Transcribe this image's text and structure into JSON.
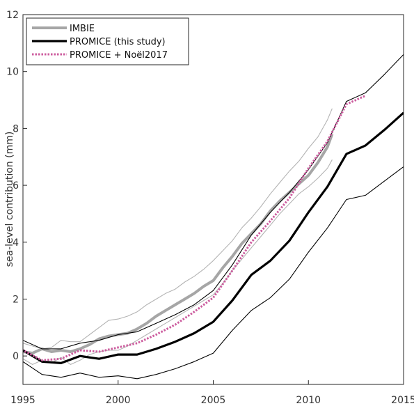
{
  "chart_data": {
    "type": "line",
    "ylabel": "sea-level contribution (mm)",
    "xlabel": "",
    "xlim": [
      1995,
      2015
    ],
    "ylim": [
      -1,
      12
    ],
    "x_ticks": [
      1995,
      2000,
      2005,
      2010,
      2015
    ],
    "y_ticks": [
      0,
      2,
      4,
      6,
      8,
      10,
      12
    ],
    "grid": false,
    "legend_position": "top-left",
    "legend": [
      {
        "label": "IMBIE",
        "series": "imbie"
      },
      {
        "label": "PROMICE (this study)",
        "series": "promice"
      },
      {
        "label": "PROMICE + Noël2017",
        "series": "noel"
      }
    ],
    "colors": {
      "imbie": "#a6a6a6",
      "promice": "#000000",
      "noel": "#cc5c9e",
      "imbie_band": "#b3b3b3"
    },
    "series": [
      {
        "id": "imbie_upper",
        "role": "band",
        "x": [
          1992.0,
          1995.0,
          1995.5,
          1996.0,
          1996.5,
          1997.0,
          1997.5,
          1998.0,
          1998.5,
          1999.0,
          1999.5,
          2000.0,
          2000.5,
          2001.0,
          2001.5,
          2002.0,
          2002.5,
          2003.0,
          2003.5,
          2004.0,
          2004.5,
          2005.0,
          2005.5,
          2006.0,
          2006.5,
          2007.0,
          2007.5,
          2008.0,
          2008.5,
          2009.0,
          2009.5,
          2010.0,
          2010.5,
          2011.0,
          2011.25
        ],
        "y": [
          0.6,
          0.45,
          0.35,
          0.25,
          0.3,
          0.55,
          0.5,
          0.5,
          0.75,
          1.0,
          1.25,
          1.3,
          1.4,
          1.55,
          1.8,
          2.0,
          2.2,
          2.35,
          2.6,
          2.8,
          3.05,
          3.35,
          3.7,
          4.05,
          4.5,
          4.85,
          5.25,
          5.7,
          6.1,
          6.5,
          6.85,
          7.3,
          7.7,
          8.3,
          8.7
        ]
      },
      {
        "id": "imbie_lower",
        "role": "band",
        "x": [
          1992.0,
          1995.0,
          1995.5,
          1996.0,
          1996.5,
          1997.0,
          1997.5,
          1998.0,
          1998.5,
          1999.0,
          1999.5,
          2000.0,
          2000.5,
          2001.0,
          2001.5,
          2002.0,
          2002.5,
          2003.0,
          2003.5,
          2004.0,
          2004.5,
          2005.0,
          2005.5,
          2006.0,
          2006.5,
          2007.0,
          2007.5,
          2008.0,
          2008.5,
          2009.0,
          2009.5,
          2010.0,
          2010.5,
          2011.0,
          2011.25
        ],
        "y": [
          -0.45,
          -0.1,
          -0.3,
          -0.15,
          -0.25,
          -0.05,
          -0.3,
          -0.15,
          0.05,
          0.15,
          0.2,
          0.2,
          0.35,
          0.55,
          0.75,
          0.95,
          1.15,
          1.35,
          1.55,
          1.75,
          1.95,
          2.15,
          2.55,
          3.0,
          3.4,
          3.8,
          4.2,
          4.6,
          5.0,
          5.35,
          5.7,
          5.95,
          6.25,
          6.6,
          6.9
        ]
      },
      {
        "id": "imbie",
        "name": "IMBIE",
        "role": "main",
        "x": [
          1992.0,
          1995.0,
          1995.5,
          1996.0,
          1996.5,
          1997.0,
          1997.5,
          1998.0,
          1998.5,
          1999.0,
          1999.5,
          2000.0,
          2000.5,
          2001.0,
          2001.5,
          2002.0,
          2002.5,
          2003.0,
          2003.5,
          2004.0,
          2004.5,
          2005.0,
          2005.5,
          2006.0,
          2006.5,
          2007.0,
          2007.5,
          2008.0,
          2008.5,
          2009.0,
          2009.5,
          2010.0,
          2010.5,
          2011.0,
          2011.25
        ],
        "y": [
          0.1,
          0.15,
          0.1,
          0.25,
          0.15,
          0.2,
          0.15,
          0.25,
          0.4,
          0.6,
          0.7,
          0.75,
          0.8,
          0.95,
          1.15,
          1.4,
          1.6,
          1.8,
          2.0,
          2.2,
          2.45,
          2.65,
          3.1,
          3.5,
          3.95,
          4.3,
          4.65,
          5.1,
          5.45,
          5.75,
          6.05,
          6.35,
          6.8,
          7.35,
          7.8
        ]
      },
      {
        "id": "promice_upper",
        "role": "band",
        "x": [
          1990.0,
          1995,
          1996,
          1997,
          1998,
          1999,
          2000,
          2001,
          2002,
          2003,
          2004,
          2005,
          2006,
          2007,
          2008,
          2009,
          2010,
          2011,
          2012,
          2013,
          2014,
          2015
        ],
        "y": [
          1.0,
          0.55,
          0.25,
          0.25,
          0.45,
          0.55,
          0.75,
          0.85,
          1.15,
          1.45,
          1.8,
          2.3,
          3.2,
          4.25,
          5.05,
          5.75,
          6.55,
          7.5,
          8.95,
          9.25,
          9.9,
          10.6
        ]
      },
      {
        "id": "promice_lower",
        "role": "band",
        "x": [
          1990.0,
          1995,
          1996,
          1997,
          1998,
          1999,
          2000,
          2001,
          2002,
          2003,
          2004,
          2005,
          2006,
          2007,
          2008,
          2009,
          2010,
          2011,
          2012,
          2013,
          2014,
          2015
        ],
        "y": [
          -0.6,
          -0.2,
          -0.65,
          -0.75,
          -0.6,
          -0.75,
          -0.7,
          -0.8,
          -0.65,
          -0.45,
          -0.2,
          0.1,
          0.9,
          1.6,
          2.05,
          2.7,
          3.65,
          4.5,
          5.5,
          5.65,
          6.15,
          6.65
        ]
      },
      {
        "id": "promice",
        "name": "PROMICE (this study)",
        "role": "main",
        "x": [
          1990.0,
          1995,
          1996,
          1997,
          1998,
          1999,
          2000,
          2001,
          2002,
          2003,
          2004,
          2005,
          2006,
          2007,
          2008,
          2009,
          2010,
          2011,
          2012,
          2013,
          2014,
          2015
        ],
        "y": [
          0.2,
          0.2,
          -0.2,
          -0.25,
          0.0,
          -0.1,
          0.05,
          0.05,
          0.25,
          0.5,
          0.8,
          1.2,
          1.95,
          2.85,
          3.35,
          4.05,
          5.05,
          5.95,
          7.1,
          7.4,
          7.95,
          8.55
        ]
      },
      {
        "id": "noel",
        "name": "PROMICE + Noël2017",
        "role": "main",
        "x": [
          1990.0,
          1995,
          1996,
          1997,
          1998,
          1999,
          2000,
          2001,
          2002,
          2003,
          2004,
          2005,
          2006,
          2007,
          2008,
          2009,
          2010,
          2011,
          2012,
          2013
        ],
        "y": [
          0.2,
          0.2,
          -0.15,
          -0.1,
          0.2,
          0.15,
          0.3,
          0.45,
          0.75,
          1.1,
          1.55,
          2.05,
          3.0,
          4.0,
          4.75,
          5.55,
          6.6,
          7.55,
          8.85,
          9.15
        ]
      }
    ]
  }
}
